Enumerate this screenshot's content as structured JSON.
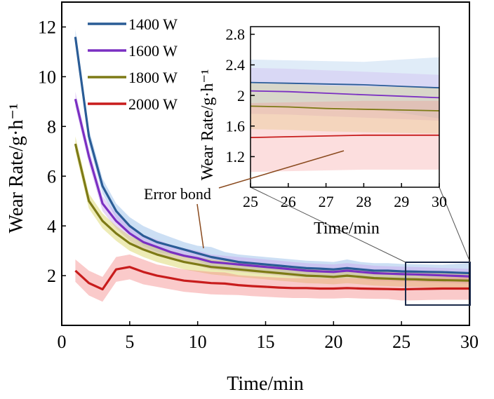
{
  "chart_data": {
    "type": "line",
    "xlabel": "Time/min",
    "ylabel": "Wear Rate/g·h⁻¹",
    "xlim": [
      0,
      30
    ],
    "ylim": [
      0,
      13
    ],
    "xticks": [
      0,
      5,
      10,
      15,
      20,
      25,
      30
    ],
    "yticks": [
      2,
      4,
      6,
      8,
      10,
      12
    ],
    "legend_position": "top-left",
    "annotation": "Error bond",
    "x": [
      1,
      2,
      3,
      4,
      5,
      6,
      7,
      8,
      9,
      10,
      11,
      12,
      13,
      14,
      15,
      16,
      17,
      18,
      19,
      20,
      21,
      22,
      23,
      24,
      25,
      26,
      27,
      28,
      29,
      30
    ],
    "series": [
      {
        "name": "1400 W",
        "color": "#2a5c96",
        "band_color": "#8eb9e6",
        "values": [
          11.6,
          7.6,
          5.6,
          4.6,
          4.0,
          3.6,
          3.35,
          3.2,
          3.05,
          2.9,
          2.75,
          2.65,
          2.55,
          2.5,
          2.45,
          2.4,
          2.35,
          2.3,
          2.28,
          2.25,
          2.3,
          2.25,
          2.2,
          2.2,
          2.17,
          2.16,
          2.15,
          2.14,
          2.12,
          2.1
        ],
        "band": [
          0.3,
          0.3,
          0.3,
          0.3,
          0.35,
          0.4,
          0.4,
          0.35,
          0.3,
          0.3,
          0.4,
          0.3,
          0.3,
          0.3,
          0.3,
          0.3,
          0.3,
          0.3,
          0.3,
          0.3,
          0.35,
          0.3,
          0.3,
          0.3,
          0.3,
          0.3,
          0.3,
          0.3,
          0.35,
          0.4
        ]
      },
      {
        "name": "1600 W",
        "color": "#7a2fc2",
        "band_color": "#c9a4ee",
        "values": [
          9.1,
          6.8,
          4.9,
          4.2,
          3.7,
          3.35,
          3.15,
          2.95,
          2.8,
          2.7,
          2.55,
          2.5,
          2.45,
          2.4,
          2.35,
          2.3,
          2.25,
          2.2,
          2.17,
          2.15,
          2.2,
          2.15,
          2.1,
          2.08,
          2.06,
          2.05,
          2.03,
          2.01,
          1.99,
          1.97
        ],
        "band": [
          0.3,
          0.3,
          0.3,
          0.3,
          0.3,
          0.3,
          0.3,
          0.3,
          0.3,
          0.3,
          0.3,
          0.3,
          0.3,
          0.3,
          0.3,
          0.3,
          0.3,
          0.3,
          0.3,
          0.3,
          0.3,
          0.3,
          0.3,
          0.3,
          0.3,
          0.3,
          0.3,
          0.3,
          0.3,
          0.3
        ]
      },
      {
        "name": "1800 W",
        "color": "#7d7a16",
        "band_color": "#d6d35a",
        "values": [
          7.3,
          5.0,
          4.2,
          3.7,
          3.3,
          3.05,
          2.85,
          2.7,
          2.55,
          2.45,
          2.35,
          2.3,
          2.25,
          2.2,
          2.15,
          2.1,
          2.05,
          2.0,
          1.98,
          1.95,
          2.0,
          1.95,
          1.9,
          1.88,
          1.86,
          1.85,
          1.83,
          1.82,
          1.81,
          1.8
        ],
        "band": [
          0.3,
          0.3,
          0.3,
          0.3,
          0.3,
          0.3,
          0.3,
          0.3,
          0.3,
          0.3,
          0.3,
          0.3,
          0.3,
          0.3,
          0.3,
          0.3,
          0.3,
          0.3,
          0.3,
          0.3,
          0.3,
          0.3,
          0.3,
          0.3,
          0.3,
          0.3,
          0.3,
          0.3,
          0.3,
          0.3
        ]
      },
      {
        "name": "2000 W",
        "color": "#c81c1c",
        "band_color": "#f48a8a",
        "values": [
          2.2,
          1.7,
          1.45,
          2.25,
          2.35,
          2.15,
          2.0,
          1.9,
          1.8,
          1.75,
          1.7,
          1.68,
          1.62,
          1.58,
          1.55,
          1.52,
          1.5,
          1.5,
          1.48,
          1.48,
          1.5,
          1.48,
          1.47,
          1.46,
          1.45,
          1.46,
          1.47,
          1.48,
          1.48,
          1.48
        ],
        "band": [
          0.45,
          0.5,
          0.5,
          0.5,
          0.5,
          0.5,
          0.45,
          0.45,
          0.45,
          0.45,
          0.45,
          0.45,
          0.4,
          0.4,
          0.4,
          0.4,
          0.4,
          0.4,
          0.4,
          0.4,
          0.4,
          0.4,
          0.4,
          0.4,
          0.45,
          0.45,
          0.45,
          0.45,
          0.45,
          0.45
        ]
      }
    ],
    "inset": {
      "xlabel": "Time/min",
      "ylabel": "Wear Rate/g·h⁻¹",
      "xlim": [
        25,
        30
      ],
      "ylim": [
        0.8,
        2.9
      ],
      "xticks": [
        25,
        26,
        27,
        28,
        29,
        30
      ],
      "yticks": [
        1.2,
        1.6,
        2.0,
        2.4,
        2.8
      ]
    }
  }
}
